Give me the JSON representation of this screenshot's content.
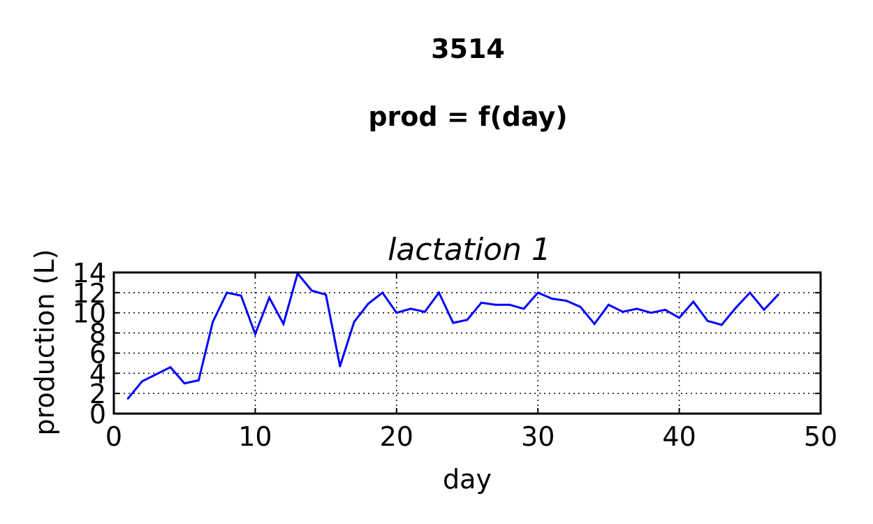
{
  "figure": {
    "suptitle_lines": [
      "3514",
      "prod = f(day)"
    ]
  },
  "chart_data": {
    "type": "line",
    "title": "lactation 1",
    "xlabel": "day",
    "ylabel": "production (L)",
    "xlim": [
      0,
      50
    ],
    "ylim": [
      0,
      14
    ],
    "xticks": [
      0,
      10,
      20,
      30,
      40,
      50
    ],
    "yticks": [
      0,
      2,
      4,
      6,
      8,
      10,
      12,
      14
    ],
    "grid": true,
    "grid_style": "dotted",
    "line_color": "#0000ff",
    "series": [
      {
        "x": [
          1,
          2,
          3,
          4,
          5,
          6,
          7,
          8,
          9,
          10,
          11,
          12,
          13,
          14,
          15,
          16,
          17,
          18,
          19,
          20,
          21,
          22,
          23,
          24,
          25,
          26,
          27,
          28,
          29,
          30,
          31,
          32,
          33,
          34,
          35,
          36,
          37,
          38,
          39,
          40,
          41,
          42,
          43,
          44,
          45,
          46,
          47
        ],
        "y": [
          1.5,
          3.2,
          3.9,
          4.6,
          3.0,
          3.3,
          9.1,
          12.0,
          11.7,
          7.9,
          11.5,
          8.9,
          13.9,
          12.2,
          11.8,
          4.7,
          9.1,
          10.9,
          12.0,
          10.0,
          10.4,
          10.1,
          12.0,
          9.0,
          9.3,
          11.0,
          10.8,
          10.8,
          10.4,
          12.0,
          11.4,
          11.2,
          10.6,
          8.9,
          10.8,
          10.1,
          10.4,
          10.0,
          10.3,
          9.5,
          11.1,
          9.2,
          8.8,
          10.5,
          12.0,
          10.3,
          11.8
        ]
      }
    ]
  }
}
